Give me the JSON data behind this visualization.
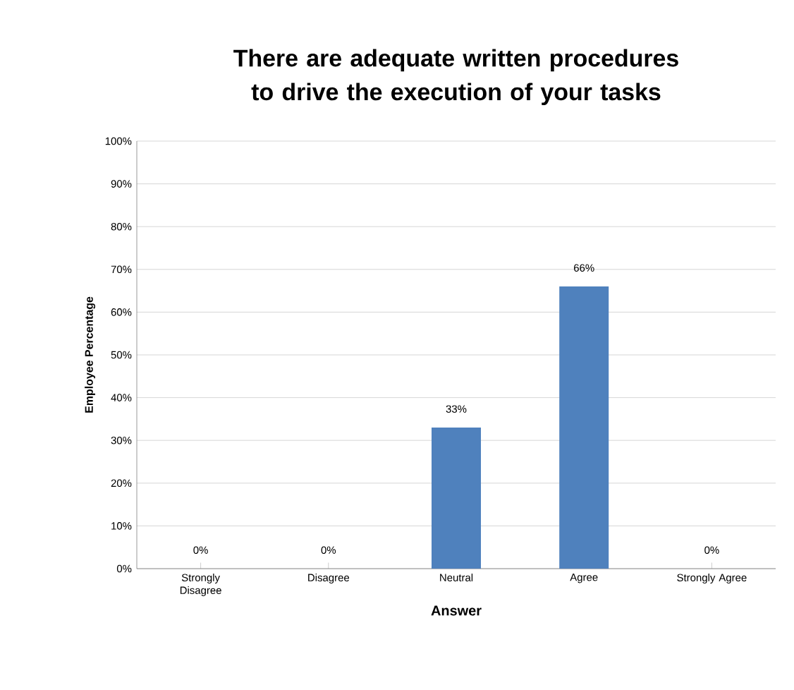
{
  "chart_data": {
    "type": "bar",
    "title": "There are adequate written procedures to drive the execution of your tasks",
    "xlabel": "Answer",
    "ylabel": "Employee Percentage",
    "categories": [
      "Strongly Disagree",
      "Disagree",
      "Neutral",
      "Agree",
      "Strongly Agree"
    ],
    "values": [
      0,
      0,
      33,
      66,
      0
    ],
    "value_labels": [
      "0%",
      "0%",
      "33%",
      "66%",
      "0%"
    ],
    "color": "#4f81bd",
    "ylim": [
      0,
      100
    ],
    "yticks": [
      {
        "value": 0,
        "label": "0%"
      },
      {
        "value": 10,
        "label": "10%"
      },
      {
        "value": 20,
        "label": "20%"
      },
      {
        "value": 30,
        "label": "30%"
      },
      {
        "value": 40,
        "label": "40%"
      },
      {
        "value": 50,
        "label": "50%"
      },
      {
        "value": 60,
        "label": "60%"
      },
      {
        "value": 70,
        "label": "70%"
      },
      {
        "value": 80,
        "label": "80%"
      },
      {
        "value": 90,
        "label": "90%"
      },
      {
        "value": 100,
        "label": "100%"
      }
    ],
    "grid": "y"
  }
}
